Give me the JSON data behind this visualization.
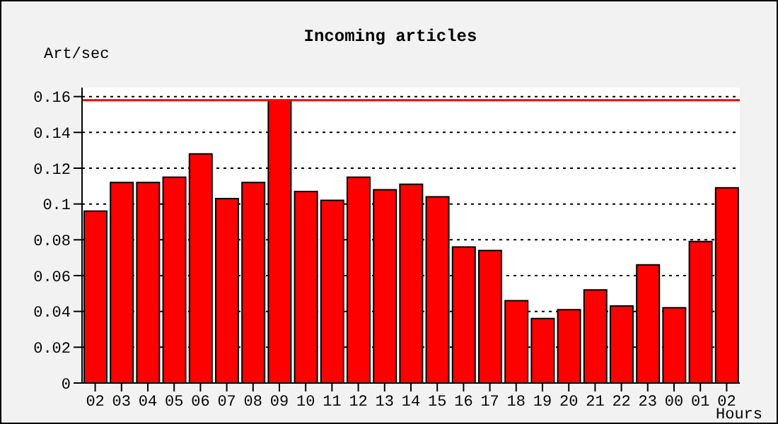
{
  "chart_data": {
    "type": "bar",
    "title": "Incoming articles",
    "xlabel": "Hours",
    "ylabel": "Art/sec",
    "categories": [
      "02",
      "03",
      "04",
      "05",
      "06",
      "07",
      "08",
      "09",
      "10",
      "11",
      "12",
      "13",
      "14",
      "15",
      "16",
      "17",
      "18",
      "19",
      "20",
      "21",
      "22",
      "23",
      "00",
      "01",
      "02"
    ],
    "values": [
      0.096,
      0.112,
      0.112,
      0.115,
      0.128,
      0.103,
      0.112,
      0.158,
      0.107,
      0.102,
      0.115,
      0.108,
      0.111,
      0.104,
      0.076,
      0.074,
      0.046,
      0.036,
      0.041,
      0.052,
      0.043,
      0.066,
      0.042,
      0.079,
      0.109
    ],
    "color": "#ff0000",
    "ylim": [
      0,
      0.165
    ],
    "yticks": [
      0,
      0.02,
      0.04,
      0.06,
      0.08,
      0.1,
      0.12,
      0.14,
      0.16
    ],
    "grid": "y",
    "ref_lines": [
      {
        "axis": "y",
        "value": 0.158,
        "color": "#ff0000"
      }
    ]
  }
}
